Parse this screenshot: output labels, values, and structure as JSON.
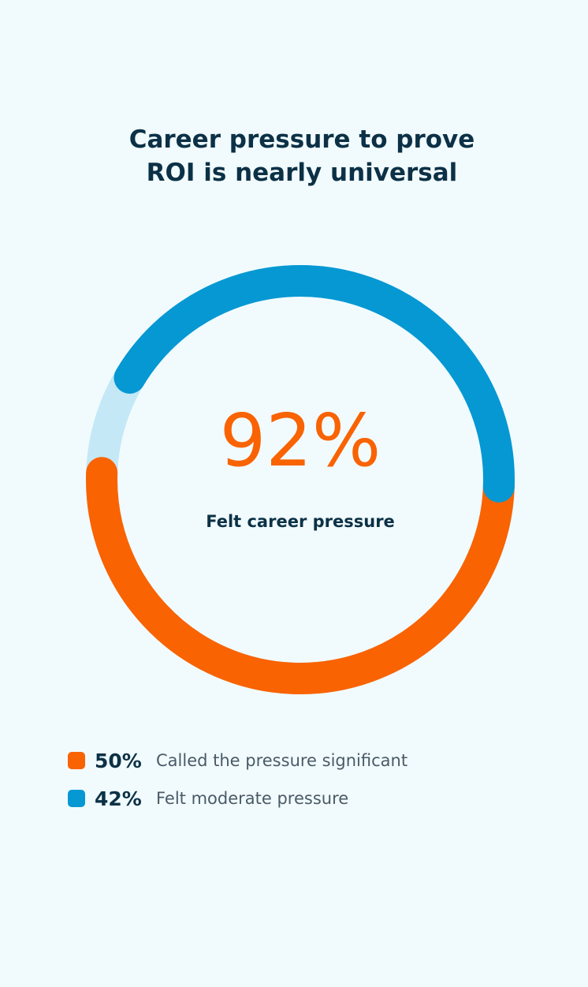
{
  "chart_data": {
    "type": "pie",
    "donut": true,
    "title": "Career pressure to prove ROI is nearly universal",
    "center_label": "92%",
    "center_caption": "Felt career pressure",
    "categories": [
      "Called the pressure significant",
      "Felt moderate pressure"
    ],
    "values": [
      50,
      42
    ],
    "value_labels": [
      "50%",
      "42%"
    ],
    "colors": [
      "#f96302",
      "#0598d3"
    ],
    "track_color": "#c4e8f6"
  }
}
